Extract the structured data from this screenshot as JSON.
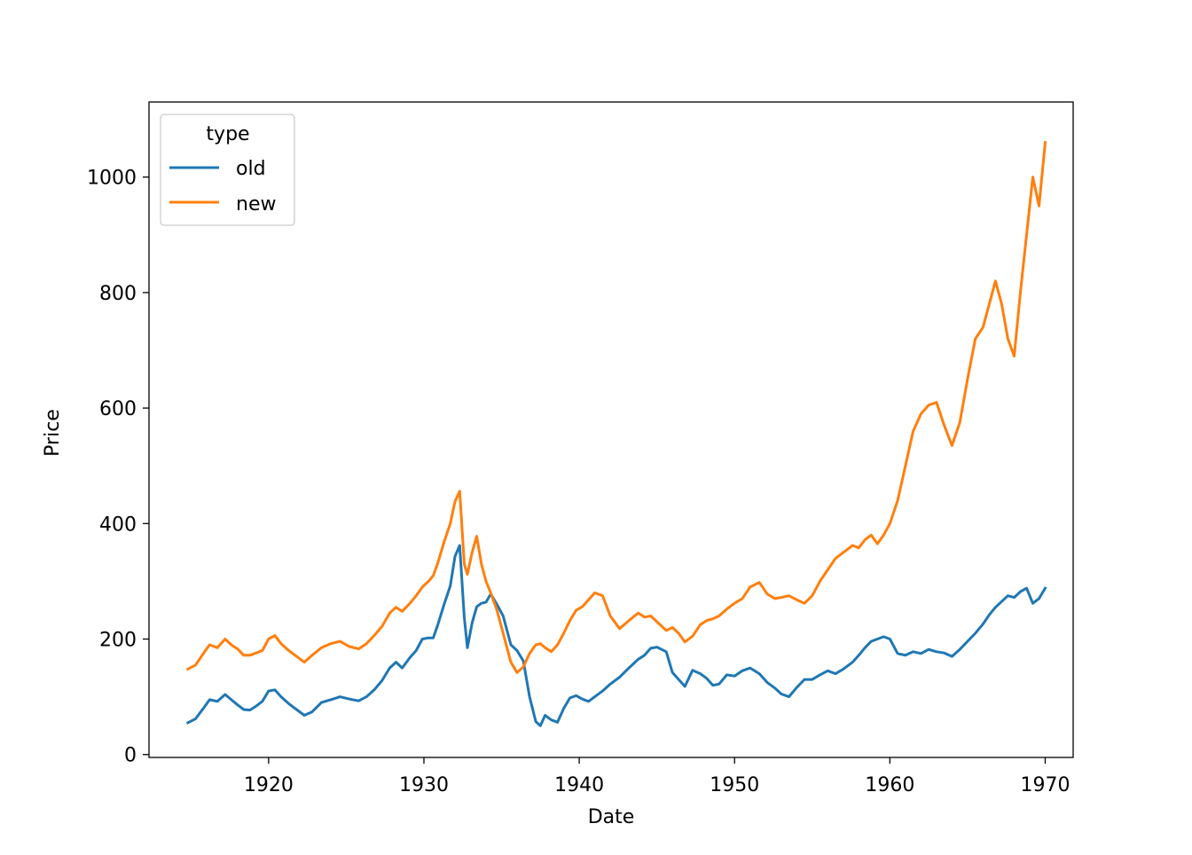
{
  "chart_data": {
    "type": "line",
    "xlabel": "Date",
    "ylabel": "Price",
    "xlim": [
      1912.3,
      1971.8
    ],
    "ylim": [
      -5,
      1130
    ],
    "x_ticks": [
      1920,
      1930,
      1940,
      1950,
      1960,
      1970
    ],
    "x_tick_labels": [
      "1920",
      "1930",
      "1940",
      "1950",
      "1960",
      "1970"
    ],
    "y_ticks": [
      0,
      200,
      400,
      600,
      800,
      1000
    ],
    "y_tick_labels": [
      "0",
      "200",
      "400",
      "600",
      "800",
      "1000"
    ],
    "grid": false,
    "legend": {
      "title": "type",
      "placement": "top-left"
    },
    "series": [
      {
        "name": "old",
        "color": "#1f77b4",
        "points": [
          [
            1914.8,
            55
          ],
          [
            1915.3,
            62
          ],
          [
            1915.8,
            80
          ],
          [
            1916.2,
            95
          ],
          [
            1916.7,
            92
          ],
          [
            1917.2,
            104
          ],
          [
            1917.6,
            95
          ],
          [
            1918.0,
            86
          ],
          [
            1918.4,
            78
          ],
          [
            1918.8,
            77
          ],
          [
            1919.2,
            84
          ],
          [
            1919.6,
            92
          ],
          [
            1920.0,
            110
          ],
          [
            1920.4,
            112
          ],
          [
            1920.8,
            100
          ],
          [
            1921.3,
            88
          ],
          [
            1921.8,
            78
          ],
          [
            1922.3,
            68
          ],
          [
            1922.8,
            74
          ],
          [
            1923.4,
            90
          ],
          [
            1924.0,
            95
          ],
          [
            1924.6,
            100
          ],
          [
            1925.2,
            96
          ],
          [
            1925.8,
            93
          ],
          [
            1926.3,
            100
          ],
          [
            1926.8,
            112
          ],
          [
            1927.3,
            128
          ],
          [
            1927.8,
            150
          ],
          [
            1928.2,
            160
          ],
          [
            1928.6,
            150
          ],
          [
            1929.1,
            168
          ],
          [
            1929.5,
            180
          ],
          [
            1929.9,
            200
          ],
          [
            1930.3,
            202
          ],
          [
            1930.6,
            202
          ],
          [
            1930.9,
            225
          ],
          [
            1931.3,
            260
          ],
          [
            1931.7,
            292
          ],
          [
            1932.0,
            343
          ],
          [
            1932.3,
            362
          ],
          [
            1932.6,
            237
          ],
          [
            1932.8,
            185
          ],
          [
            1933.1,
            228
          ],
          [
            1933.4,
            256
          ],
          [
            1933.7,
            262
          ],
          [
            1934.0,
            264
          ],
          [
            1934.3,
            278
          ],
          [
            1934.7,
            260
          ],
          [
            1935.1,
            240
          ],
          [
            1935.6,
            190
          ],
          [
            1936.0,
            180
          ],
          [
            1936.4,
            162
          ],
          [
            1936.8,
            100
          ],
          [
            1937.2,
            57
          ],
          [
            1937.5,
            50
          ],
          [
            1937.8,
            68
          ],
          [
            1938.2,
            60
          ],
          [
            1938.6,
            56
          ],
          [
            1939.0,
            80
          ],
          [
            1939.4,
            98
          ],
          [
            1939.8,
            102
          ],
          [
            1940.2,
            96
          ],
          [
            1940.6,
            92
          ],
          [
            1941.0,
            100
          ],
          [
            1941.5,
            110
          ],
          [
            1942.0,
            122
          ],
          [
            1942.6,
            134
          ],
          [
            1943.2,
            150
          ],
          [
            1943.8,
            165
          ],
          [
            1944.2,
            172
          ],
          [
            1944.6,
            184
          ],
          [
            1945.0,
            186
          ],
          [
            1945.6,
            178
          ],
          [
            1946.0,
            142
          ],
          [
            1946.4,
            130
          ],
          [
            1946.8,
            118
          ],
          [
            1947.3,
            146
          ],
          [
            1947.8,
            140
          ],
          [
            1948.2,
            132
          ],
          [
            1948.6,
            120
          ],
          [
            1949.0,
            122
          ],
          [
            1949.5,
            138
          ],
          [
            1950.0,
            136
          ],
          [
            1950.5,
            145
          ],
          [
            1951.0,
            150
          ],
          [
            1951.6,
            140
          ],
          [
            1952.1,
            125
          ],
          [
            1952.6,
            115
          ],
          [
            1953.0,
            105
          ],
          [
            1953.5,
            100
          ],
          [
            1954.0,
            116
          ],
          [
            1954.5,
            130
          ],
          [
            1955.0,
            130
          ],
          [
            1955.5,
            138
          ],
          [
            1956.0,
            145
          ],
          [
            1956.5,
            140
          ],
          [
            1957.0,
            148
          ],
          [
            1957.6,
            160
          ],
          [
            1958.0,
            172
          ],
          [
            1958.4,
            185
          ],
          [
            1958.8,
            196
          ],
          [
            1959.2,
            200
          ],
          [
            1959.6,
            204
          ],
          [
            1960.0,
            200
          ],
          [
            1960.5,
            175
          ],
          [
            1961.0,
            172
          ],
          [
            1961.5,
            178
          ],
          [
            1962.0,
            175
          ],
          [
            1962.5,
            182
          ],
          [
            1963.0,
            178
          ],
          [
            1963.5,
            176
          ],
          [
            1964.0,
            170
          ],
          [
            1964.5,
            182
          ],
          [
            1965.0,
            196
          ],
          [
            1965.5,
            210
          ],
          [
            1966.0,
            226
          ],
          [
            1966.4,
            242
          ],
          [
            1966.8,
            255
          ],
          [
            1967.2,
            265
          ],
          [
            1967.6,
            275
          ],
          [
            1968.0,
            272
          ],
          [
            1968.4,
            282
          ],
          [
            1968.8,
            288
          ],
          [
            1969.2,
            262
          ],
          [
            1969.6,
            270
          ],
          [
            1970.0,
            288
          ]
        ]
      },
      {
        "name": "new",
        "color": "#ff7f0e",
        "points": [
          [
            1914.8,
            148
          ],
          [
            1915.3,
            155
          ],
          [
            1915.8,
            175
          ],
          [
            1916.2,
            190
          ],
          [
            1916.7,
            185
          ],
          [
            1917.2,
            200
          ],
          [
            1917.6,
            190
          ],
          [
            1918.0,
            183
          ],
          [
            1918.4,
            172
          ],
          [
            1918.8,
            172
          ],
          [
            1919.2,
            176
          ],
          [
            1919.6,
            180
          ],
          [
            1920.0,
            200
          ],
          [
            1920.4,
            206
          ],
          [
            1920.8,
            192
          ],
          [
            1921.3,
            180
          ],
          [
            1921.8,
            170
          ],
          [
            1922.3,
            160
          ],
          [
            1922.8,
            172
          ],
          [
            1923.4,
            185
          ],
          [
            1924.0,
            192
          ],
          [
            1924.6,
            196
          ],
          [
            1925.2,
            187
          ],
          [
            1925.8,
            183
          ],
          [
            1926.3,
            192
          ],
          [
            1926.8,
            206
          ],
          [
            1927.3,
            222
          ],
          [
            1927.8,
            245
          ],
          [
            1928.2,
            255
          ],
          [
            1928.6,
            248
          ],
          [
            1929.1,
            262
          ],
          [
            1929.5,
            275
          ],
          [
            1929.9,
            290
          ],
          [
            1930.3,
            300
          ],
          [
            1930.6,
            310
          ],
          [
            1930.9,
            332
          ],
          [
            1931.3,
            368
          ],
          [
            1931.7,
            400
          ],
          [
            1932.0,
            438
          ],
          [
            1932.3,
            456
          ],
          [
            1932.6,
            330
          ],
          [
            1932.8,
            312
          ],
          [
            1933.1,
            350
          ],
          [
            1933.4,
            378
          ],
          [
            1933.7,
            330
          ],
          [
            1934.0,
            300
          ],
          [
            1934.3,
            280
          ],
          [
            1934.7,
            250
          ],
          [
            1935.1,
            210
          ],
          [
            1935.6,
            160
          ],
          [
            1936.0,
            142
          ],
          [
            1936.4,
            152
          ],
          [
            1936.8,
            175
          ],
          [
            1937.2,
            190
          ],
          [
            1937.5,
            192
          ],
          [
            1937.8,
            185
          ],
          [
            1938.2,
            178
          ],
          [
            1938.6,
            190
          ],
          [
            1939.0,
            210
          ],
          [
            1939.4,
            232
          ],
          [
            1939.8,
            250
          ],
          [
            1940.2,
            256
          ],
          [
            1940.6,
            268
          ],
          [
            1941.0,
            280
          ],
          [
            1941.5,
            275
          ],
          [
            1942.0,
            240
          ],
          [
            1942.6,
            218
          ],
          [
            1943.2,
            232
          ],
          [
            1943.8,
            245
          ],
          [
            1944.2,
            238
          ],
          [
            1944.6,
            240
          ],
          [
            1945.0,
            230
          ],
          [
            1945.6,
            215
          ],
          [
            1946.0,
            220
          ],
          [
            1946.4,
            210
          ],
          [
            1946.8,
            195
          ],
          [
            1947.3,
            205
          ],
          [
            1947.8,
            225
          ],
          [
            1948.2,
            232
          ],
          [
            1948.6,
            235
          ],
          [
            1949.0,
            240
          ],
          [
            1949.5,
            252
          ],
          [
            1950.0,
            262
          ],
          [
            1950.5,
            270
          ],
          [
            1951.0,
            290
          ],
          [
            1951.6,
            298
          ],
          [
            1952.1,
            278
          ],
          [
            1952.6,
            270
          ],
          [
            1953.0,
            272
          ],
          [
            1953.5,
            275
          ],
          [
            1954.0,
            268
          ],
          [
            1954.5,
            262
          ],
          [
            1955.0,
            275
          ],
          [
            1955.5,
            300
          ],
          [
            1956.0,
            320
          ],
          [
            1956.5,
            340
          ],
          [
            1957.0,
            350
          ],
          [
            1957.6,
            362
          ],
          [
            1958.0,
            358
          ],
          [
            1958.4,
            372
          ],
          [
            1958.8,
            380
          ],
          [
            1959.2,
            365
          ],
          [
            1959.6,
            380
          ],
          [
            1960.0,
            400
          ],
          [
            1960.5,
            440
          ],
          [
            1961.0,
            500
          ],
          [
            1961.5,
            560
          ],
          [
            1962.0,
            590
          ],
          [
            1962.5,
            605
          ],
          [
            1963.0,
            610
          ],
          [
            1963.5,
            570
          ],
          [
            1964.0,
            535
          ],
          [
            1964.5,
            575
          ],
          [
            1965.0,
            650
          ],
          [
            1965.5,
            720
          ],
          [
            1966.0,
            740
          ],
          [
            1966.4,
            780
          ],
          [
            1966.8,
            820
          ],
          [
            1967.2,
            780
          ],
          [
            1967.6,
            720
          ],
          [
            1968.0,
            690
          ],
          [
            1968.4,
            800
          ],
          [
            1968.8,
            900
          ],
          [
            1969.2,
            1000
          ],
          [
            1969.6,
            950
          ],
          [
            1970.0,
            1060
          ]
        ]
      }
    ]
  }
}
